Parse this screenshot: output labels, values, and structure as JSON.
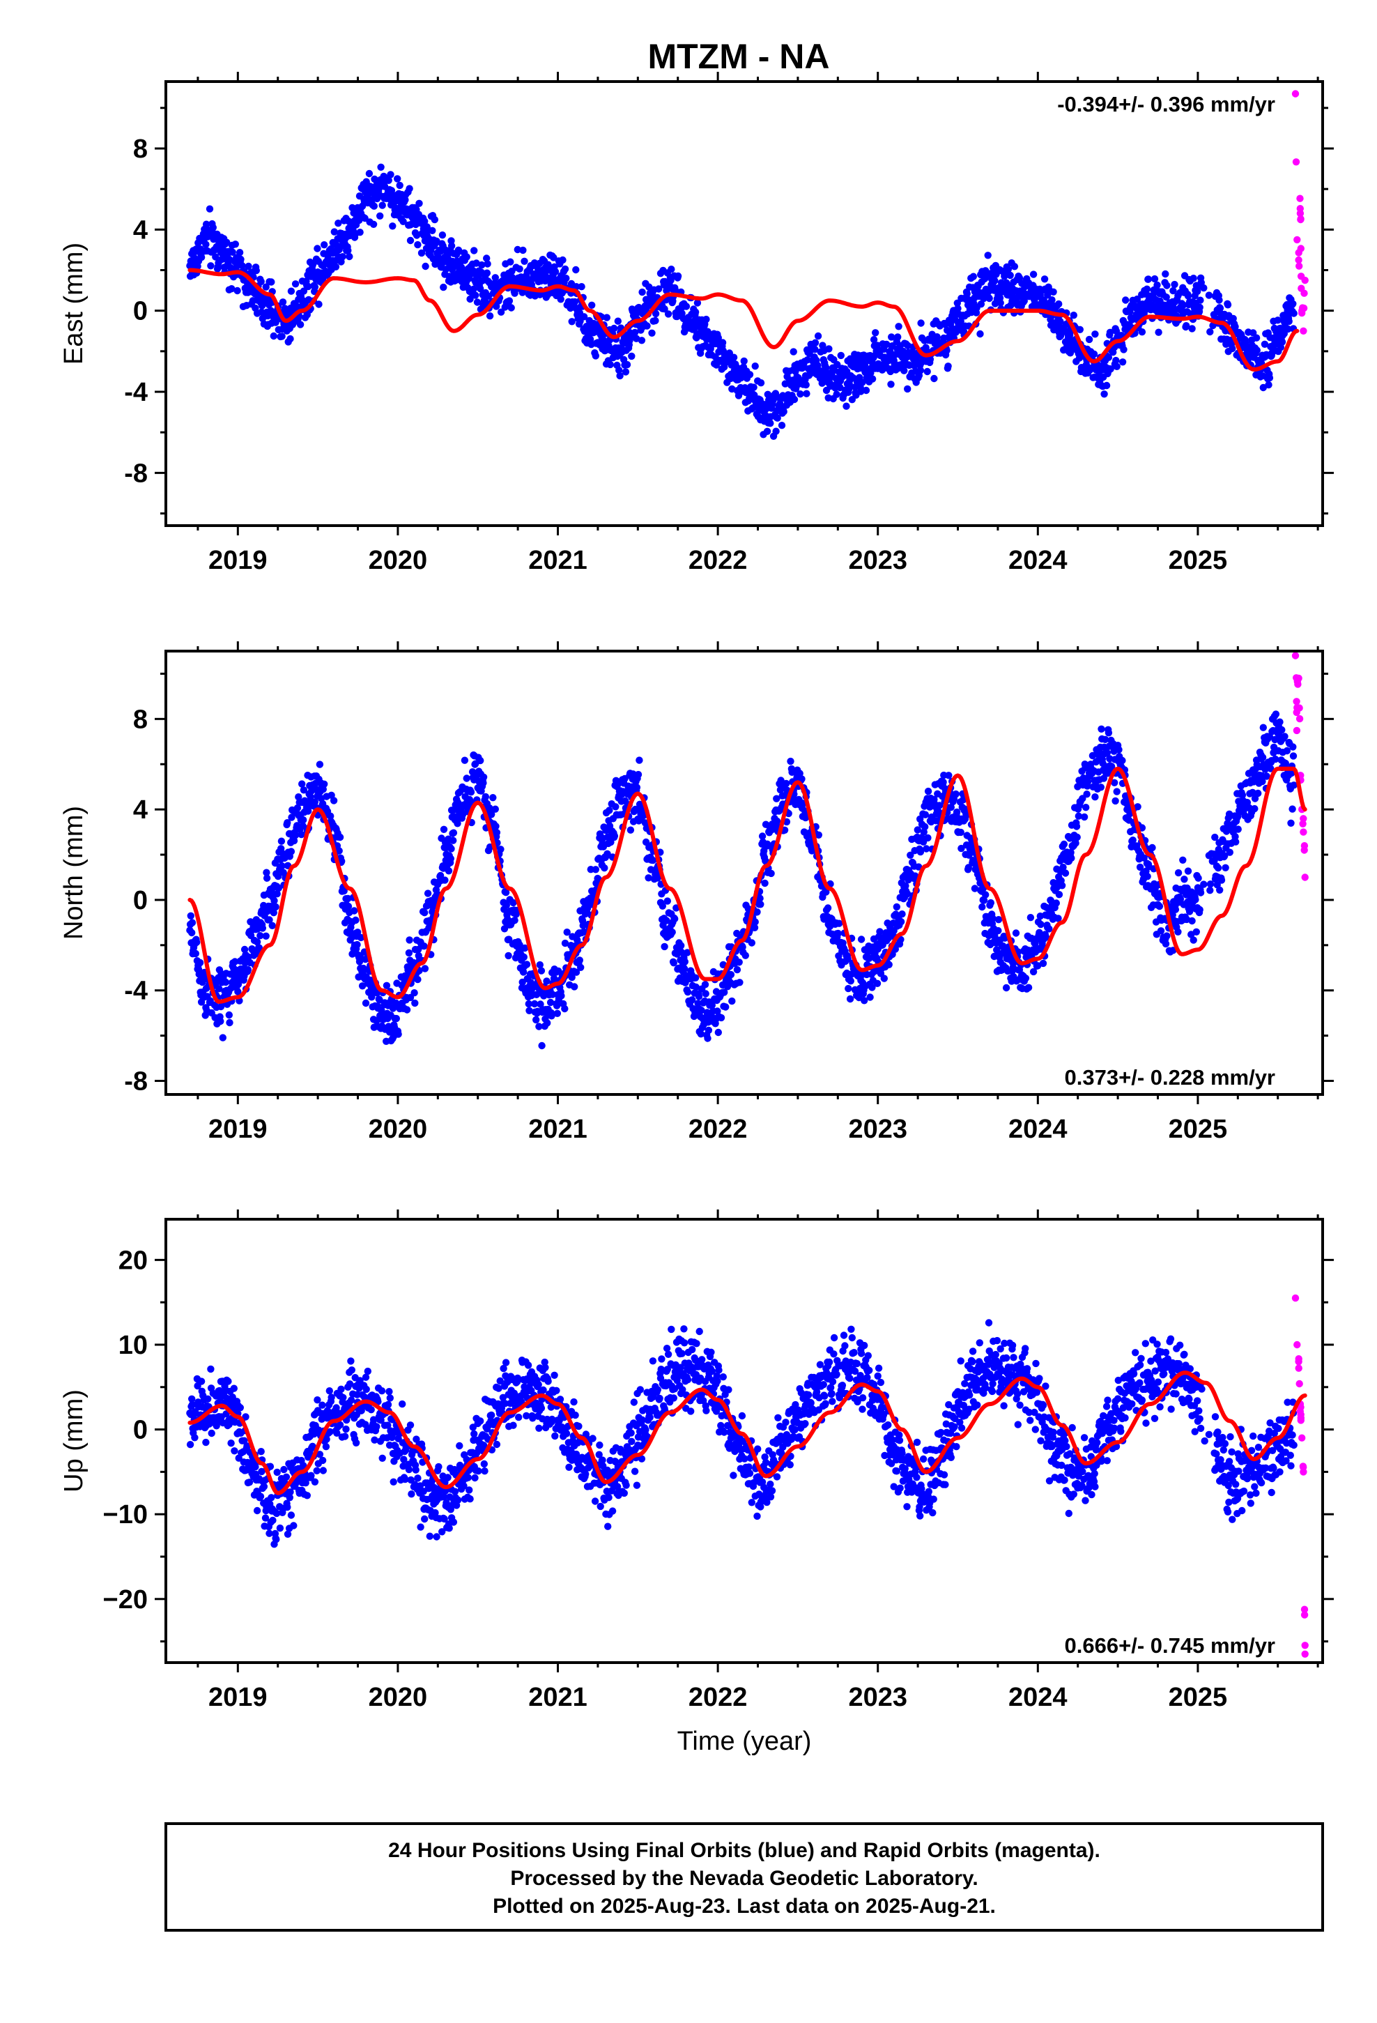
{
  "title": "MTZM - NA",
  "footer": {
    "line1": "24 Hour Positions Using Final Orbits (blue) and Rapid Orbits (magenta).",
    "line2": "Processed by the Nevada Geodetic Laboratory.",
    "line3": "Plotted on 2025-Aug-23. Last data on 2025-Aug-21."
  },
  "colors": {
    "final": "#0000ff",
    "rapid": "#ff00ff",
    "model": "#ff0000"
  },
  "chart_data": [
    {
      "type": "scatter",
      "ylabel": "East (mm)",
      "rate_text": "-0.394+/- 0.396 mm/yr",
      "rate_position": "top-right",
      "xlim": [
        2018.55,
        2025.78
      ],
      "ylim": [
        -10.6,
        11.3
      ],
      "yticks": [
        "8",
        "4",
        "0",
        "-4",
        "-8"
      ],
      "ytick_values": [
        8,
        4,
        0,
        -4,
        -8
      ],
      "xticks": [
        "2019",
        "2020",
        "2021",
        "2022",
        "2023",
        "2024",
        "2025"
      ],
      "series": [
        {
          "role": "final",
          "x": [
            2018.7,
            2018.8,
            2018.9,
            2019.0,
            2019.1,
            2019.2,
            2019.3,
            2019.4,
            2019.5,
            2019.6,
            2019.7,
            2019.8,
            2019.9,
            2020.0,
            2020.1,
            2020.2,
            2020.3,
            2020.4,
            2020.5,
            2020.6,
            2020.7,
            2020.8,
            2020.9,
            2021.0,
            2021.1,
            2021.2,
            2021.3,
            2021.4,
            2021.5,
            2021.6,
            2021.7,
            2021.8,
            2021.9,
            2022.0,
            2022.1,
            2022.2,
            2022.3,
            2022.4,
            2022.5,
            2022.6,
            2022.7,
            2022.8,
            2022.9,
            2023.0,
            2023.1,
            2023.2,
            2023.3,
            2023.4,
            2023.5,
            2023.6,
            2023.7,
            2023.8,
            2023.9,
            2024.0,
            2024.1,
            2024.2,
            2024.3,
            2024.4,
            2024.5,
            2024.6,
            2024.7,
            2024.8,
            2024.9,
            2025.0,
            2025.1,
            2025.2,
            2025.3,
            2025.4,
            2025.5,
            2025.6
          ],
          "y": [
            2.2,
            3.5,
            3.0,
            2.0,
            1.0,
            0.0,
            -0.5,
            0.5,
            2.0,
            3.0,
            4.0,
            5.5,
            6.0,
            5.5,
            4.5,
            3.5,
            2.5,
            2.0,
            1.5,
            1.0,
            1.2,
            1.5,
            1.8,
            1.5,
            0.5,
            -1.0,
            -1.5,
            -2.0,
            -0.5,
            0.5,
            1.0,
            0.0,
            -1.0,
            -2.0,
            -3.0,
            -4.0,
            -5.0,
            -4.5,
            -3.0,
            -2.5,
            -3.0,
            -3.5,
            -3.0,
            -2.5,
            -2.0,
            -2.5,
            -2.0,
            -1.5,
            -0.5,
            0.5,
            1.0,
            1.2,
            1.0,
            0.8,
            0.0,
            -1.0,
            -2.5,
            -3.0,
            -1.5,
            0.0,
            0.5,
            0.5,
            0.0,
            0.5,
            0.0,
            -1.0,
            -2.0,
            -2.5,
            -1.5,
            0.0
          ],
          "spread": 1.1
        },
        {
          "role": "rapid",
          "x": [
            2025.61,
            2025.62,
            2025.63,
            2025.64,
            2025.65,
            2025.66,
            2025.67
          ],
          "y": [
            10.7,
            3.5,
            2.5,
            4.8,
            0.0,
            -1.0,
            1.5
          ],
          "spread": 1.5
        },
        {
          "role": "model",
          "x": [
            2018.7,
            2018.9,
            2019.0,
            2019.2,
            2019.3,
            2019.4,
            2019.6,
            2019.8,
            2020.0,
            2020.1,
            2020.2,
            2020.35,
            2020.5,
            2020.7,
            2020.9,
            2021.0,
            2021.1,
            2021.2,
            2021.35,
            2021.5,
            2021.7,
            2021.9,
            2022.0,
            2022.15,
            2022.35,
            2022.5,
            2022.7,
            2022.9,
            2023.0,
            2023.1,
            2023.3,
            2023.5,
            2023.7,
            2023.9,
            2024.0,
            2024.15,
            2024.35,
            2024.5,
            2024.7,
            2024.9,
            2025.0,
            2025.15,
            2025.35,
            2025.5,
            2025.62
          ],
          "y": [
            2.0,
            1.8,
            1.9,
            0.8,
            -0.5,
            0.0,
            1.6,
            1.4,
            1.6,
            1.5,
            0.5,
            -1.0,
            -0.2,
            1.2,
            1.0,
            1.2,
            1.0,
            0.0,
            -1.3,
            -0.5,
            0.8,
            0.6,
            0.8,
            0.5,
            -1.8,
            -0.5,
            0.5,
            0.2,
            0.4,
            0.2,
            -2.2,
            -1.5,
            0.0,
            0.0,
            0.0,
            -0.2,
            -2.5,
            -1.5,
            -0.3,
            -0.4,
            -0.3,
            -0.6,
            -2.9,
            -2.5,
            -1.0
          ]
        }
      ]
    },
    {
      "type": "scatter",
      "ylabel": "North (mm)",
      "rate_text": "0.373+/- 0.228 mm/yr",
      "rate_position": "bottom-right",
      "xlim": [
        2018.55,
        2025.78
      ],
      "ylim": [
        -8.6,
        11.0
      ],
      "yticks": [
        "8",
        "4",
        "0",
        "-4",
        "-8"
      ],
      "ytick_values": [
        8,
        4,
        0,
        -4,
        -8
      ],
      "xticks": [
        "2019",
        "2020",
        "2021",
        "2022",
        "2023",
        "2024",
        "2025"
      ],
      "series": [
        {
          "role": "final",
          "x": [
            2018.7,
            2018.8,
            2018.9,
            2019.0,
            2019.1,
            2019.2,
            2019.3,
            2019.4,
            2019.5,
            2019.6,
            2019.7,
            2019.8,
            2019.9,
            2020.0,
            2020.1,
            2020.2,
            2020.3,
            2020.4,
            2020.5,
            2020.6,
            2020.7,
            2020.8,
            2020.9,
            2021.0,
            2021.1,
            2021.2,
            2021.3,
            2021.4,
            2021.5,
            2021.6,
            2021.7,
            2021.8,
            2021.9,
            2022.0,
            2022.1,
            2022.2,
            2022.3,
            2022.4,
            2022.5,
            2022.6,
            2022.7,
            2022.8,
            2022.9,
            2023.0,
            2023.1,
            2023.2,
            2023.3,
            2023.4,
            2023.5,
            2023.6,
            2023.7,
            2023.8,
            2023.9,
            2024.0,
            2024.1,
            2024.2,
            2024.3,
            2024.4,
            2024.5,
            2024.6,
            2024.7,
            2024.8,
            2024.9,
            2025.0,
            2025.1,
            2025.2,
            2025.3,
            2025.4,
            2025.5,
            2025.6
          ],
          "y": [
            -1.5,
            -4.0,
            -4.5,
            -3.5,
            -2.0,
            0.0,
            2.0,
            4.0,
            5.0,
            3.0,
            -1.0,
            -3.5,
            -5.0,
            -5.0,
            -3.0,
            -1.0,
            2.0,
            4.5,
            5.5,
            3.0,
            -1.0,
            -3.5,
            -4.5,
            -4.0,
            -2.5,
            0.0,
            2.5,
            4.5,
            4.5,
            2.0,
            -1.5,
            -3.5,
            -5.0,
            -4.5,
            -3.0,
            -1.0,
            2.0,
            4.5,
            5.0,
            2.5,
            -1.0,
            -2.5,
            -3.5,
            -2.5,
            -1.5,
            1.0,
            3.5,
            4.5,
            4.0,
            2.0,
            -1.0,
            -2.5,
            -3.0,
            -2.0,
            0.0,
            2.5,
            5.0,
            6.5,
            6.0,
            3.0,
            1.0,
            -1.5,
            0.0,
            -0.5,
            1.5,
            3.0,
            4.5,
            6.0,
            7.0,
            5.0
          ],
          "spread": 1.2
        },
        {
          "role": "rapid",
          "x": [
            2025.61,
            2025.62,
            2025.63,
            2025.64,
            2025.65,
            2025.66,
            2025.67
          ],
          "y": [
            10.8,
            8.5,
            9.8,
            5.5,
            4.0,
            3.0,
            1.0
          ],
          "spread": 1.5
        },
        {
          "role": "model",
          "x": [
            2018.7,
            2018.88,
            2019.0,
            2019.2,
            2019.35,
            2019.5,
            2019.7,
            2019.9,
            2020.0,
            2020.15,
            2020.3,
            2020.5,
            2020.7,
            2020.92,
            2021.0,
            2021.15,
            2021.3,
            2021.5,
            2021.7,
            2021.92,
            2022.0,
            2022.15,
            2022.3,
            2022.5,
            2022.7,
            2022.9,
            2023.0,
            2023.15,
            2023.3,
            2023.5,
            2023.7,
            2023.9,
            2024.0,
            2024.15,
            2024.3,
            2024.5,
            2024.7,
            2024.9,
            2025.0,
            2025.15,
            2025.3,
            2025.5,
            2025.6,
            2025.67
          ],
          "y": [
            0.0,
            -4.5,
            -4.3,
            -2.0,
            1.5,
            4.0,
            0.5,
            -4.0,
            -4.3,
            -2.8,
            0.5,
            4.3,
            0.5,
            -3.9,
            -3.7,
            -2.0,
            1.0,
            4.7,
            0.5,
            -3.5,
            -3.5,
            -1.8,
            1.5,
            5.2,
            0.5,
            -3.1,
            -2.9,
            -1.5,
            1.5,
            5.5,
            0.5,
            -2.8,
            -2.6,
            -1.0,
            2.0,
            5.8,
            2.0,
            -2.4,
            -2.2,
            -0.7,
            1.5,
            5.8,
            5.8,
            4.0
          ]
        }
      ]
    },
    {
      "type": "scatter",
      "ylabel": "Up (mm)",
      "xlabel": "Time (year)",
      "rate_text": "0.666+/- 0.745 mm/yr",
      "rate_position": "bottom-right",
      "xlim": [
        2018.55,
        2025.78
      ],
      "ylim": [
        -27.5,
        24.8
      ],
      "yticks": [
        "20",
        "10",
        "0",
        "−10",
        "−20"
      ],
      "ytick_values": [
        20,
        10,
        0,
        -10,
        -20
      ],
      "xticks": [
        "2019",
        "2020",
        "2021",
        "2022",
        "2023",
        "2024",
        "2025"
      ],
      "series": [
        {
          "role": "final",
          "x": [
            2018.7,
            2018.8,
            2018.9,
            2019.0,
            2019.1,
            2019.2,
            2019.3,
            2019.4,
            2019.5,
            2019.6,
            2019.7,
            2019.8,
            2019.9,
            2020.0,
            2020.1,
            2020.2,
            2020.3,
            2020.4,
            2020.5,
            2020.6,
            2020.7,
            2020.8,
            2020.9,
            2021.0,
            2021.1,
            2021.2,
            2021.3,
            2021.4,
            2021.5,
            2021.6,
            2021.7,
            2021.8,
            2021.9,
            2022.0,
            2022.1,
            2022.2,
            2022.3,
            2022.4,
            2022.5,
            2022.6,
            2022.7,
            2022.8,
            2022.9,
            2023.0,
            2023.1,
            2023.2,
            2023.3,
            2023.4,
            2023.5,
            2023.6,
            2023.7,
            2023.8,
            2023.9,
            2024.0,
            2024.1,
            2024.2,
            2024.3,
            2024.4,
            2024.5,
            2024.6,
            2024.7,
            2024.8,
            2024.9,
            2025.0,
            2025.1,
            2025.2,
            2025.3,
            2025.4,
            2025.5,
            2025.6
          ],
          "y": [
            1.0,
            2.5,
            3.0,
            0.0,
            -5.0,
            -9.0,
            -8.0,
            -5.0,
            -1.0,
            2.0,
            3.0,
            3.5,
            2.0,
            -1.0,
            -4.0,
            -8.0,
            -9.0,
            -6.0,
            -2.0,
            2.0,
            4.0,
            5.0,
            4.5,
            2.0,
            -2.0,
            -5.0,
            -7.0,
            -5.0,
            -1.0,
            3.0,
            6.0,
            7.5,
            7.0,
            4.0,
            -1.0,
            -5.0,
            -6.0,
            -3.0,
            1.0,
            4.0,
            6.0,
            7.0,
            6.5,
            3.0,
            -2.0,
            -5.0,
            -7.0,
            -4.0,
            2.0,
            6.0,
            8.0,
            7.0,
            6.0,
            3.0,
            -2.0,
            -5.0,
            -5.0,
            -2.0,
            2.0,
            5.0,
            6.0,
            7.0,
            6.0,
            4.0,
            -2.0,
            -6.0,
            -5.0,
            -4.0,
            -2.0,
            0.0
          ],
          "spread": 3.8
        },
        {
          "role": "rapid",
          "x": [
            2025.61,
            2025.62,
            2025.63,
            2025.64,
            2025.65,
            2025.66,
            2025.67
          ],
          "y": [
            15.5,
            10.0,
            8.0,
            3.0,
            -1.0,
            -5.0,
            -26.5
          ],
          "spread": 1.5
        },
        {
          "role": "model",
          "x": [
            2018.7,
            2018.9,
            2019.0,
            2019.15,
            2019.25,
            2019.4,
            2019.6,
            2019.8,
            2019.95,
            2020.1,
            2020.3,
            2020.5,
            2020.7,
            2020.9,
            2021.0,
            2021.15,
            2021.3,
            2021.5,
            2021.7,
            2021.9,
            2022.0,
            2022.15,
            2022.3,
            2022.5,
            2022.7,
            2022.9,
            2023.0,
            2023.15,
            2023.3,
            2023.5,
            2023.7,
            2023.9,
            2024.0,
            2024.15,
            2024.3,
            2024.5,
            2024.7,
            2024.92,
            2025.05,
            2025.2,
            2025.35,
            2025.5,
            2025.67
          ],
          "y": [
            0.8,
            2.8,
            1.5,
            -4.0,
            -7.5,
            -5.0,
            1.0,
            3.3,
            2.0,
            -2.0,
            -6.8,
            -3.5,
            2.0,
            4.0,
            3.0,
            -1.0,
            -6.2,
            -3.0,
            2.0,
            4.7,
            3.5,
            -0.5,
            -5.5,
            -2.0,
            2.0,
            5.3,
            4.5,
            0.0,
            -5.0,
            -1.0,
            3.0,
            6.0,
            5.0,
            0.5,
            -4.0,
            -1.5,
            3.0,
            6.7,
            5.5,
            1.0,
            -3.5,
            -1.0,
            4.0
          ]
        }
      ]
    }
  ]
}
